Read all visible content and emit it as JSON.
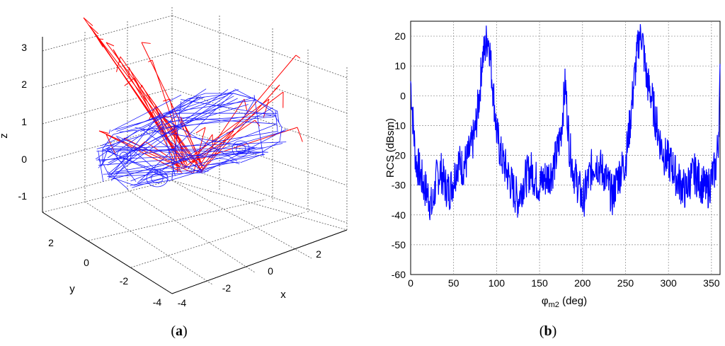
{
  "chart_data": [
    {
      "type": "3d-wireframe",
      "caption": "a",
      "xlabel": "x",
      "ylabel": "y",
      "zlabel": "z",
      "xticks": [
        "-4",
        "-2",
        "0",
        "2"
      ],
      "yticks": [
        "-4",
        "-2",
        "0",
        "2"
      ],
      "zticks": [
        "-1",
        "0",
        "1",
        "2",
        "3"
      ],
      "xlim": [
        -4,
        3
      ],
      "ylim": [
        -4,
        3
      ],
      "zlim": [
        -1.5,
        3
      ],
      "grid": true,
      "colors": {
        "model": "#1a1aff",
        "rays": "#ff0000",
        "grid": "#555555"
      }
    },
    {
      "type": "line",
      "caption": "b",
      "xlabel": "φ",
      "xlabel_sub": "m2",
      "xlabel_unit": " (deg)",
      "ylabel": "RCS (dBsm)",
      "xlim": [
        0,
        360
      ],
      "ylim": [
        -60,
        25
      ],
      "xticks": [
        0,
        50,
        100,
        150,
        200,
        250,
        300,
        350
      ],
      "yticks": [
        -60,
        -50,
        -40,
        -30,
        -20,
        -10,
        0,
        10,
        20
      ],
      "grid": true,
      "color": "#0000ff",
      "series": [
        {
          "x": [
            0,
            3,
            6,
            10,
            15,
            20,
            25,
            30,
            35,
            40,
            45,
            50,
            55,
            60,
            65,
            70,
            75,
            80,
            83,
            86,
            88,
            90,
            92,
            94,
            96,
            98,
            100,
            105,
            110,
            115,
            120,
            125,
            130,
            135,
            140,
            145,
            150,
            155,
            160,
            165,
            170,
            175,
            178,
            180,
            182,
            185,
            190,
            195,
            198,
            200,
            205,
            210,
            215,
            220,
            225,
            230,
            235,
            240,
            245,
            250,
            255,
            260,
            264,
            266,
            268,
            270,
            272,
            275,
            280,
            285,
            290,
            295,
            300,
            305,
            310,
            315,
            320,
            325,
            330,
            335,
            340,
            345,
            350,
            355,
            358,
            360
          ],
          "y": [
            5,
            -10,
            -22,
            -25,
            -30,
            -33,
            -38,
            -28,
            -25,
            -30,
            -32,
            -28,
            -22,
            -24,
            -22,
            -18,
            -12,
            0,
            12,
            15,
            18,
            20,
            16,
            8,
            2,
            -5,
            -12,
            -20,
            -24,
            -28,
            -32,
            -35,
            -30,
            -27,
            -25,
            -28,
            -30,
            -28,
            -27,
            -25,
            -20,
            -12,
            -2,
            4,
            -5,
            -18,
            -26,
            -30,
            -33,
            -36,
            -30,
            -25,
            -22,
            -24,
            -26,
            -30,
            -34,
            -28,
            -25,
            -22,
            -10,
            5,
            15,
            20,
            22,
            18,
            12,
            5,
            0,
            -8,
            -15,
            -20,
            -22,
            -24,
            -28,
            -30,
            -32,
            -28,
            -26,
            -28,
            -30,
            -32,
            -28,
            -24,
            -15,
            5
          ]
        }
      ]
    }
  ]
}
